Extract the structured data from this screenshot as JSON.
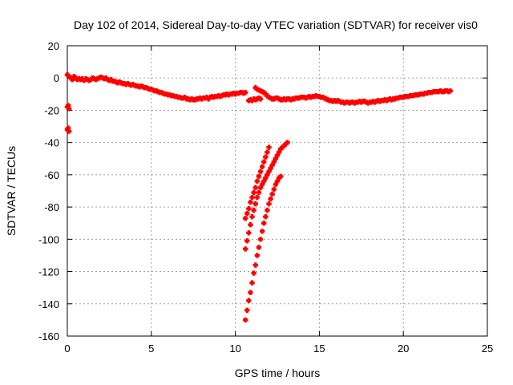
{
  "chart_data": {
    "type": "scatter",
    "title": "Day 102 of 2014, Sidereal Day-to-day VTEC variation (SDTVAR) for receiver vis0",
    "xlabel": "GPS time / hours",
    "ylabel": "SDTVAR / TECUs",
    "xlim": [
      0,
      25
    ],
    "ylim": [
      -160,
      20
    ],
    "xticks": [
      "0",
      "5",
      "10",
      "15",
      "20",
      "25"
    ],
    "yticks": [
      "20",
      "0",
      "-20",
      "-40",
      "-60",
      "-80",
      "-100",
      "-120",
      "-140",
      "-160"
    ],
    "grid": true,
    "marker_color": "#ff0000",
    "series": [
      {
        "points": [
          [
            0.0,
            2
          ],
          [
            0.1,
            1
          ],
          [
            0.2,
            0
          ],
          [
            0.3,
            -1
          ],
          [
            0.4,
            1
          ],
          [
            0.5,
            0
          ],
          [
            0.6,
            -1
          ],
          [
            0.7,
            -0.5
          ],
          [
            0.8,
            -1
          ],
          [
            0.9,
            -0.5
          ],
          [
            1.0,
            -1.5
          ],
          [
            1.1,
            -0.5
          ],
          [
            1.2,
            -1
          ],
          [
            1.3,
            -1.5
          ],
          [
            1.4,
            -1
          ],
          [
            1.5,
            0
          ],
          [
            1.6,
            -0.5
          ],
          [
            1.7,
            -1
          ],
          [
            1.8,
            -0.5
          ],
          [
            1.9,
            0
          ],
          [
            2.0,
            0.5
          ],
          [
            2.1,
            0
          ],
          [
            2.2,
            -0.5
          ],
          [
            2.3,
            0
          ],
          [
            2.4,
            -1
          ],
          [
            2.5,
            -1.5
          ],
          [
            2.6,
            -1
          ],
          [
            2.7,
            -2
          ],
          [
            2.8,
            -2
          ],
          [
            2.9,
            -2.5
          ],
          [
            3.0,
            -3
          ],
          [
            3.1,
            -2.5
          ],
          [
            3.2,
            -3
          ],
          [
            3.3,
            -3.5
          ],
          [
            3.4,
            -3.5
          ],
          [
            3.5,
            -4
          ],
          [
            3.6,
            -3.5
          ],
          [
            3.7,
            -4
          ],
          [
            3.8,
            -4.5
          ],
          [
            3.9,
            -4
          ],
          [
            4.0,
            -4.5
          ],
          [
            4.1,
            -5
          ],
          [
            4.2,
            -5
          ],
          [
            4.3,
            -5.5
          ],
          [
            4.4,
            -5
          ],
          [
            4.5,
            -5.5
          ],
          [
            4.6,
            -6
          ],
          [
            4.7,
            -6
          ],
          [
            4.8,
            -6.5
          ],
          [
            4.9,
            -7
          ],
          [
            5.0,
            -7
          ],
          [
            5.1,
            -7.5
          ],
          [
            5.2,
            -8
          ],
          [
            5.3,
            -8
          ],
          [
            5.4,
            -8.5
          ],
          [
            5.5,
            -9
          ],
          [
            5.6,
            -9
          ],
          [
            5.7,
            -9.5
          ],
          [
            5.8,
            -10
          ],
          [
            5.9,
            -10
          ],
          [
            6.0,
            -10.5
          ],
          [
            6.1,
            -10.5
          ],
          [
            6.2,
            -11
          ],
          [
            6.3,
            -11
          ],
          [
            6.4,
            -11.5
          ],
          [
            6.5,
            -11.5
          ],
          [
            6.6,
            -12
          ],
          [
            6.7,
            -12
          ],
          [
            6.8,
            -12.5
          ],
          [
            6.9,
            -12.5
          ],
          [
            7.0,
            -12
          ],
          [
            7.1,
            -13
          ],
          [
            7.2,
            -13
          ],
          [
            7.3,
            -13.5
          ],
          [
            7.4,
            -13
          ],
          [
            7.5,
            -13.5
          ],
          [
            7.6,
            -13.5
          ],
          [
            7.7,
            -13
          ],
          [
            7.8,
            -13
          ],
          [
            7.9,
            -12.5
          ],
          [
            8.0,
            -13
          ],
          [
            8.1,
            -12.5
          ],
          [
            8.2,
            -12.5
          ],
          [
            8.3,
            -12
          ],
          [
            8.4,
            -13
          ],
          [
            8.5,
            -12
          ],
          [
            8.6,
            -11.5
          ],
          [
            8.7,
            -12
          ],
          [
            8.8,
            -11.5
          ],
          [
            8.9,
            -11.5
          ],
          [
            9.0,
            -11
          ],
          [
            9.1,
            -11.5
          ],
          [
            9.2,
            -11
          ],
          [
            9.3,
            -10.5
          ],
          [
            9.4,
            -10.5
          ],
          [
            9.5,
            -10
          ],
          [
            9.6,
            -10.5
          ],
          [
            9.7,
            -10
          ],
          [
            9.8,
            -10
          ],
          [
            9.9,
            -9.5
          ],
          [
            10.0,
            -10
          ],
          [
            10.1,
            -9.5
          ],
          [
            10.2,
            -9.5
          ],
          [
            10.3,
            -9
          ],
          [
            10.4,
            -9
          ],
          [
            10.5,
            -9.5
          ],
          [
            10.6,
            -9
          ],
          [
            10.8,
            -14
          ],
          [
            10.9,
            -13.5
          ],
          [
            11.0,
            -14
          ],
          [
            11.1,
            -13
          ],
          [
            11.2,
            -13.5
          ],
          [
            11.3,
            -13
          ],
          [
            11.4,
            -12.5
          ],
          [
            11.5,
            -13
          ],
          [
            11.2,
            -6
          ],
          [
            11.3,
            -7
          ],
          [
            11.4,
            -7.5
          ],
          [
            11.5,
            -8
          ],
          [
            11.6,
            -8.5
          ],
          [
            11.7,
            -9
          ],
          [
            11.8,
            -10
          ],
          [
            11.9,
            -11
          ],
          [
            12.0,
            -12
          ],
          [
            12.1,
            -12.5
          ],
          [
            12.2,
            -13
          ],
          [
            12.3,
            -13
          ],
          [
            12.4,
            -12.5
          ],
          [
            12.5,
            -12.5
          ],
          [
            12.6,
            -13
          ],
          [
            12.7,
            -13.5
          ],
          [
            12.8,
            -13.5
          ],
          [
            12.9,
            -13
          ],
          [
            13.0,
            -13.5
          ],
          [
            13.1,
            -13
          ],
          [
            13.2,
            -13
          ],
          [
            13.3,
            -13.5
          ],
          [
            13.4,
            -13
          ],
          [
            13.5,
            -13
          ],
          [
            13.6,
            -12.5
          ],
          [
            13.7,
            -12.5
          ],
          [
            13.8,
            -12.5
          ],
          [
            13.9,
            -12
          ],
          [
            14.0,
            -12
          ],
          [
            14.1,
            -12
          ],
          [
            14.2,
            -12.5
          ],
          [
            14.3,
            -12
          ],
          [
            14.4,
            -11.5
          ],
          [
            14.5,
            -12
          ],
          [
            14.6,
            -11.5
          ],
          [
            14.7,
            -11.5
          ],
          [
            14.8,
            -11
          ],
          [
            14.9,
            -11.5
          ],
          [
            15.0,
            -11.5
          ],
          [
            15.1,
            -12
          ],
          [
            15.2,
            -12
          ],
          [
            15.3,
            -12.5
          ],
          [
            15.4,
            -13
          ],
          [
            15.5,
            -13.5
          ],
          [
            15.6,
            -14
          ],
          [
            15.7,
            -14
          ],
          [
            15.8,
            -14.5
          ],
          [
            15.9,
            -14
          ],
          [
            16.0,
            -14.5
          ],
          [
            16.1,
            -14
          ],
          [
            16.2,
            -14.5
          ],
          [
            16.3,
            -15
          ],
          [
            16.4,
            -15
          ],
          [
            16.5,
            -15.5
          ],
          [
            16.6,
            -15
          ],
          [
            16.7,
            -15
          ],
          [
            16.8,
            -15.5
          ],
          [
            16.9,
            -15
          ],
          [
            17.0,
            -15
          ],
          [
            17.1,
            -15.5
          ],
          [
            17.2,
            -15
          ],
          [
            17.3,
            -15
          ],
          [
            17.4,
            -14.5
          ],
          [
            17.5,
            -15
          ],
          [
            17.6,
            -14.5
          ],
          [
            17.7,
            -14.5
          ],
          [
            17.8,
            -15
          ],
          [
            17.9,
            -15.5
          ],
          [
            18.0,
            -15
          ],
          [
            18.1,
            -15
          ],
          [
            18.2,
            -14.5
          ],
          [
            18.3,
            -15
          ],
          [
            18.4,
            -14.5
          ],
          [
            18.5,
            -14
          ],
          [
            18.6,
            -14.5
          ],
          [
            18.7,
            -14
          ],
          [
            18.8,
            -14
          ],
          [
            18.9,
            -13.5
          ],
          [
            19.0,
            -14
          ],
          [
            19.1,
            -13.5
          ],
          [
            19.2,
            -13
          ],
          [
            19.3,
            -13.5
          ],
          [
            19.4,
            -13
          ],
          [
            19.5,
            -13
          ],
          [
            19.6,
            -12.5
          ],
          [
            19.7,
            -12.5
          ],
          [
            19.8,
            -12
          ],
          [
            19.9,
            -12
          ],
          [
            20.0,
            -12
          ],
          [
            20.1,
            -11.5
          ],
          [
            20.2,
            -11.5
          ],
          [
            20.3,
            -11.5
          ],
          [
            20.4,
            -11
          ],
          [
            20.5,
            -11
          ],
          [
            20.6,
            -11
          ],
          [
            20.7,
            -10.5
          ],
          [
            20.8,
            -10.5
          ],
          [
            20.9,
            -10.5
          ],
          [
            21.0,
            -10
          ],
          [
            21.1,
            -10
          ],
          [
            21.2,
            -10
          ],
          [
            21.3,
            -9.5
          ],
          [
            21.4,
            -9.5
          ],
          [
            21.5,
            -9
          ],
          [
            21.6,
            -9
          ],
          [
            21.7,
            -9
          ],
          [
            21.8,
            -8.5
          ],
          [
            21.9,
            -8.5
          ],
          [
            22.0,
            -8.5
          ],
          [
            22.1,
            -8.5
          ],
          [
            22.2,
            -8
          ],
          [
            22.3,
            -8.5
          ],
          [
            22.4,
            -8.5
          ],
          [
            22.5,
            -8
          ],
          [
            22.6,
            -8
          ],
          [
            22.7,
            -8.5
          ],
          [
            22.8,
            -8
          ],
          [
            0.0,
            -18
          ],
          [
            0.05,
            -17
          ],
          [
            0.1,
            -19
          ],
          [
            0.0,
            -32
          ],
          [
            0.05,
            -31
          ],
          [
            0.1,
            -33
          ],
          [
            10.6,
            -87
          ],
          [
            10.7,
            -84
          ],
          [
            10.8,
            -81
          ],
          [
            10.9,
            -77
          ],
          [
            11.0,
            -74
          ],
          [
            11.1,
            -71
          ],
          [
            11.2,
            -68
          ],
          [
            11.3,
            -64
          ],
          [
            11.4,
            -61
          ],
          [
            11.5,
            -58
          ],
          [
            11.6,
            -55
          ],
          [
            11.7,
            -52
          ],
          [
            11.8,
            -49
          ],
          [
            11.9,
            -46
          ],
          [
            12.0,
            -43
          ],
          [
            10.6,
            -106
          ],
          [
            10.7,
            -101
          ],
          [
            10.8,
            -96
          ],
          [
            10.9,
            -91
          ],
          [
            11.0,
            -86
          ],
          [
            11.1,
            -82
          ],
          [
            11.2,
            -78
          ],
          [
            11.3,
            -74
          ],
          [
            11.4,
            -71
          ],
          [
            11.5,
            -68
          ],
          [
            11.6,
            -66
          ],
          [
            11.7,
            -64
          ],
          [
            11.8,
            -62
          ],
          [
            11.9,
            -60
          ],
          [
            12.0,
            -58
          ],
          [
            12.1,
            -56
          ],
          [
            12.2,
            -54
          ],
          [
            12.3,
            -52
          ],
          [
            12.4,
            -50
          ],
          [
            12.5,
            -48
          ],
          [
            12.6,
            -46
          ],
          [
            12.7,
            -44
          ],
          [
            12.8,
            -43
          ],
          [
            12.9,
            -42
          ],
          [
            13.0,
            -41
          ],
          [
            13.1,
            -40
          ],
          [
            10.6,
            -150
          ],
          [
            10.7,
            -144
          ],
          [
            10.8,
            -138
          ],
          [
            10.9,
            -133
          ],
          [
            11.0,
            -127
          ],
          [
            11.1,
            -121
          ],
          [
            11.2,
            -116
          ],
          [
            11.3,
            -110
          ],
          [
            11.4,
            -105
          ],
          [
            11.5,
            -100
          ],
          [
            11.6,
            -95
          ],
          [
            11.7,
            -90
          ],
          [
            11.8,
            -86
          ],
          [
            11.9,
            -82
          ],
          [
            12.0,
            -78
          ],
          [
            12.1,
            -75
          ],
          [
            12.2,
            -72
          ],
          [
            12.3,
            -69
          ],
          [
            12.4,
            -66
          ],
          [
            12.5,
            -64
          ],
          [
            12.6,
            -62
          ],
          [
            12.7,
            -61
          ]
        ]
      }
    ]
  }
}
